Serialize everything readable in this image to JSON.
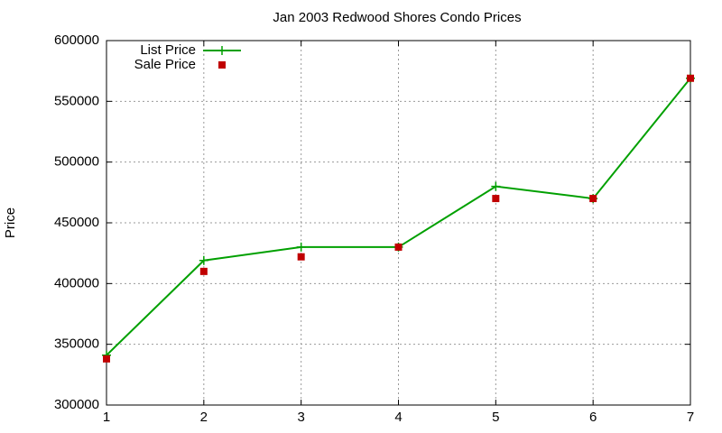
{
  "chart_data": {
    "type": "line",
    "title": "Jan 2003 Redwood Shores Condo Prices",
    "y_label": "Price",
    "x": [
      1,
      2,
      3,
      4,
      5,
      6,
      7
    ],
    "series": [
      {
        "name": "List Price",
        "color": "#00a000",
        "style": "linespoints",
        "values": [
          341000,
          419000,
          430000,
          430000,
          480000,
          470000,
          569000
        ]
      },
      {
        "name": "Sale Price",
        "color": "#c00000",
        "style": "points",
        "values": [
          338000,
          410000,
          422000,
          430000,
          470000,
          470000,
          569000
        ]
      }
    ],
    "xlim": [
      1,
      7
    ],
    "xticks": [
      1,
      2,
      3,
      4,
      5,
      6,
      7
    ],
    "ylim": [
      300000,
      600000
    ],
    "yticks": [
      300000,
      350000,
      400000,
      450000,
      500000,
      550000,
      600000
    ],
    "grid": true,
    "legend": "top-left"
  }
}
